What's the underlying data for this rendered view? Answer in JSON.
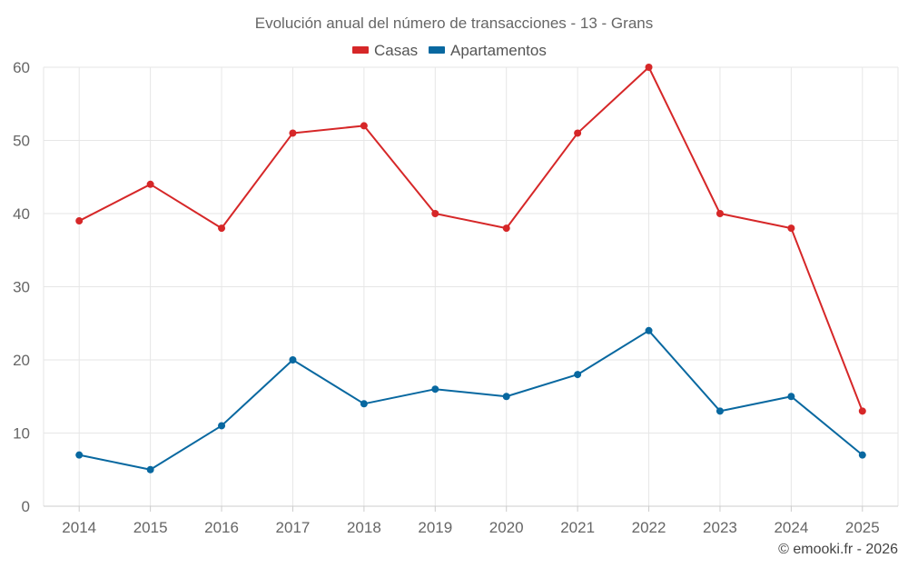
{
  "chart_data": {
    "type": "line",
    "title": "Evolución anual del número de transacciones - 13 - Grans",
    "categories": [
      "2014",
      "2015",
      "2016",
      "2017",
      "2018",
      "2019",
      "2020",
      "2021",
      "2022",
      "2023",
      "2024",
      "2025"
    ],
    "series": [
      {
        "name": "Casas",
        "color": "#d62728",
        "values": [
          39,
          44,
          38,
          51,
          52,
          40,
          38,
          51,
          60,
          40,
          38,
          13
        ]
      },
      {
        "name": "Apartamentos",
        "color": "#0868a0",
        "values": [
          7,
          5,
          11,
          20,
          14,
          16,
          15,
          18,
          24,
          13,
          15,
          7
        ]
      }
    ],
    "ylim": [
      0,
      60
    ],
    "yticks": [
      0,
      10,
      20,
      30,
      40,
      50,
      60
    ],
    "xlabel": "",
    "ylabel": "",
    "grid": true,
    "legend": "top-center"
  },
  "credit": "© emooki.fr - 2026"
}
